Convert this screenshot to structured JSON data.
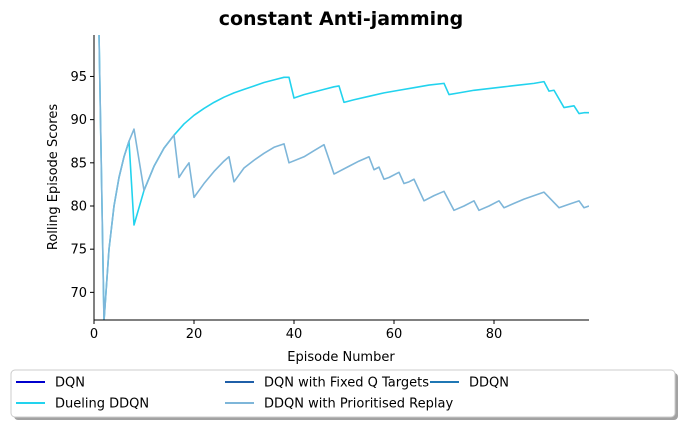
{
  "chart_data": {
    "type": "line",
    "title": "constant Anti-jamming",
    "xlabel": "Episode Number",
    "ylabel": "Rolling Episode Scores",
    "xlim": [
      0,
      99
    ],
    "ylim": [
      66.8,
      99.8
    ],
    "xticks": [
      0,
      20,
      40,
      60,
      80
    ],
    "yticks": [
      70,
      75,
      80,
      85,
      90,
      95
    ],
    "grid": false,
    "legend_position": "bottom",
    "series": [
      {
        "name": "DQN",
        "color": "#0000cd",
        "x": [
          0,
          99
        ],
        "y": [
          100,
          100
        ]
      },
      {
        "name": "DQN with Fixed Q Targets",
        "color": "#1f5fa8",
        "x": [
          0,
          99
        ],
        "y": [
          100,
          100
        ]
      },
      {
        "name": "DDQN",
        "color": "#1f77b4",
        "x": [
          0,
          99
        ],
        "y": [
          100,
          100
        ]
      },
      {
        "name": "Dueling DDQN",
        "color": "#22d3ee",
        "x": [
          1,
          2,
          3,
          4,
          5,
          6,
          7,
          8,
          10,
          12,
          14,
          16,
          18,
          20,
          22,
          24,
          26,
          28,
          30,
          32,
          34,
          36,
          38,
          39,
          40,
          42,
          44,
          46,
          48,
          49,
          50,
          52,
          55,
          58,
          61,
          64,
          67,
          70,
          71,
          73,
          76,
          79,
          82,
          85,
          88,
          90,
          91,
          92,
          94,
          96,
          97,
          98,
          99
        ],
        "y": [
          100,
          66.7,
          75.0,
          80.0,
          83.3,
          85.7,
          87.5,
          77.8,
          81.8,
          84.6,
          86.7,
          88.2,
          89.5,
          90.5,
          91.3,
          92.0,
          92.6,
          93.1,
          93.5,
          93.9,
          94.3,
          94.6,
          94.9,
          94.9,
          92.5,
          92.9,
          93.2,
          93.5,
          93.8,
          93.9,
          92.0,
          92.3,
          92.7,
          93.1,
          93.4,
          93.7,
          94.0,
          94.2,
          92.9,
          93.1,
          93.4,
          93.6,
          93.8,
          94.0,
          94.2,
          94.4,
          93.3,
          93.4,
          91.4,
          91.6,
          90.7,
          90.8,
          90.8
        ]
      },
      {
        "name": "DDQN with Prioritised Replay",
        "color": "#7eb6d9",
        "x": [
          1,
          2,
          3,
          4,
          5,
          6,
          7,
          8,
          10,
          12,
          14,
          16,
          17,
          18,
          19,
          20,
          22,
          24,
          26,
          27,
          28,
          30,
          32,
          34,
          36,
          38,
          39,
          42,
          44,
          46,
          48,
          51,
          53,
          55,
          56,
          57,
          58,
          59,
          61,
          62,
          63,
          64,
          66,
          68,
          70,
          72,
          74,
          76,
          77,
          79,
          81,
          82,
          84,
          86,
          88,
          90,
          93,
          95,
          97,
          98,
          99
        ],
        "y": [
          100,
          66.7,
          75.0,
          80.0,
          83.3,
          85.7,
          87.5,
          88.9,
          81.8,
          84.6,
          86.7,
          88.2,
          83.3,
          84.2,
          85.0,
          81.0,
          82.6,
          84.0,
          85.2,
          85.7,
          82.8,
          84.4,
          85.3,
          86.1,
          86.8,
          87.2,
          85.0,
          85.7,
          86.4,
          87.1,
          83.7,
          84.6,
          85.2,
          85.7,
          84.2,
          84.5,
          83.1,
          83.3,
          83.9,
          82.6,
          82.8,
          83.1,
          80.6,
          81.2,
          81.7,
          79.5,
          80.0,
          80.6,
          79.5,
          80.0,
          80.6,
          79.8,
          80.3,
          80.8,
          81.2,
          81.6,
          79.8,
          80.2,
          80.6,
          79.8,
          80.0
        ]
      }
    ]
  }
}
